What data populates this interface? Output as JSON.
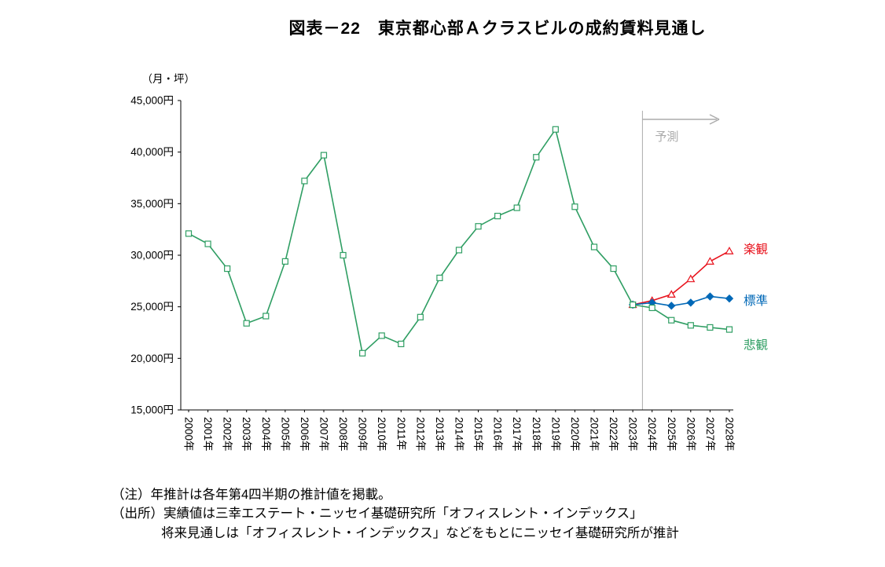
{
  "title": "図表－22　東京都心部Ａクラスビルの成約賃料見通し",
  "notes": [
    "（注）年推計は各年第4四半期の推計値を掲載。",
    "（出所）実績値は三幸エステート・ニッセイ基礎研究所「オフィスレント・インデックス」",
    "将来見通しは「オフィスレント・インデックス」などをもとにニッセイ基礎研究所が推計"
  ],
  "chart_data": {
    "type": "line",
    "title": "図表－22　東京都心部Ａクラスビルの成約賃料見通し",
    "unit_label": "（月・坪）",
    "ylim": [
      15000,
      45000
    ],
    "y_ticks": [
      45000,
      40000,
      35000,
      30000,
      25000,
      20000,
      15000
    ],
    "y_tick_suffix": "円",
    "x_start_year": 2000,
    "x_labels": [
      "2000年",
      "2001年",
      "2002年",
      "2003年",
      "2004年",
      "2005年",
      "2006年",
      "2007年",
      "2008年",
      "2009年",
      "2010年",
      "2011年",
      "2012年",
      "2013年",
      "2014年",
      "2015年",
      "2016年",
      "2017年",
      "2018年",
      "2019年",
      "2020年",
      "2021年",
      "2022年",
      "2023年",
      "2024年",
      "2025年",
      "2026年",
      "2027年",
      "2028年"
    ],
    "grid": "off",
    "legend_position": "right-of-line-ends",
    "forecast": {
      "divider_year": 2023.5,
      "label": "予測",
      "color": "#ababab"
    },
    "series": [
      {
        "name": "実績値",
        "show_label": false,
        "color": "#2f9e63",
        "marker": "square",
        "marker_fill": "#ffffff",
        "start_year": 2000,
        "values": [
          32100,
          31100,
          28700,
          23400,
          24100,
          29400,
          37200,
          39700,
          30000,
          20500,
          22200,
          21400,
          24000,
          27800,
          30500,
          32800,
          33800,
          34600,
          39500,
          42200,
          34700,
          30800,
          28700,
          25200
        ]
      },
      {
        "name": "楽観",
        "show_label": true,
        "label_dy": -2,
        "color": "#e8121c",
        "marker": "triangle",
        "marker_fill": "#ffffff",
        "start_year": 2023,
        "values": [
          25200,
          25600,
          26200,
          27700,
          29400,
          30400
        ]
      },
      {
        "name": "標準",
        "show_label": true,
        "label_dy": 3,
        "color": "#0068b7",
        "marker": "diamond",
        "marker_fill": "#0068b7",
        "start_year": 2023,
        "values": [
          25200,
          25400,
          25100,
          25400,
          26000,
          25800
        ]
      },
      {
        "name": "悲観",
        "show_label": true,
        "label_dy": 20,
        "color": "#2f9e63",
        "marker": "square",
        "marker_fill": "#ffffff",
        "start_year": 2023,
        "values": [
          25200,
          24900,
          23700,
          23200,
          23000,
          22800
        ]
      }
    ]
  }
}
